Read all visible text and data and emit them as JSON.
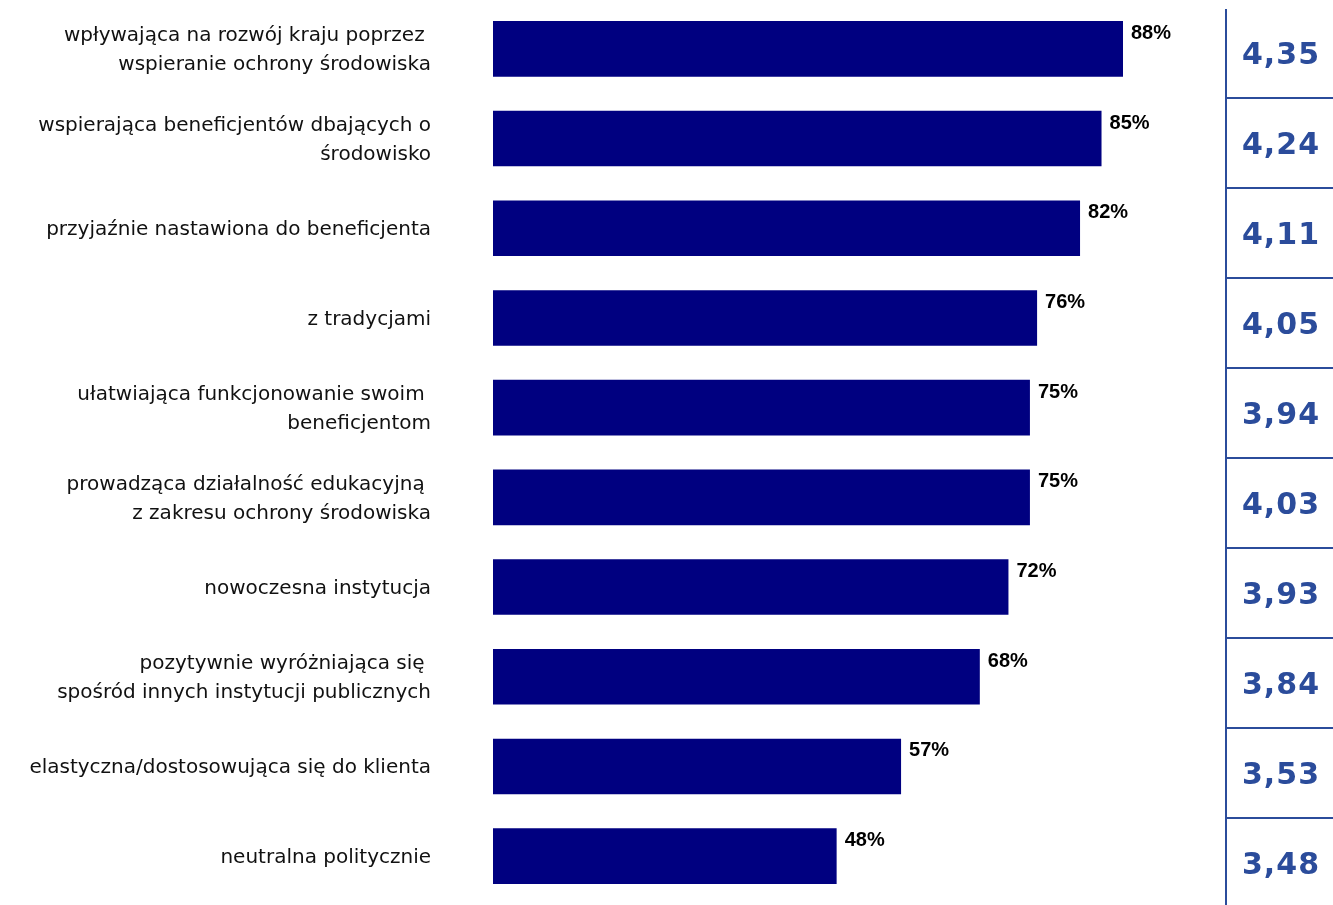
{
  "chart_data": {
    "type": "bar",
    "orientation": "horizontal",
    "categories": [
      "wpływająca na rozwój kraju poprzez wspieranie ochrony środowiska",
      "wspierająca beneficjentów dbających o środowisko",
      "przyjaźnie nastawiona do beneficjenta",
      "z tradycjami",
      "ułatwiająca funkcjonowanie swoim beneficjentom",
      "prowadząca działalność edukacyjną z zakresu ochrony środowiska",
      "nowoczesna instytucja",
      "pozytywnie wyróżniająca się spośród innych instytucji publicznych",
      "elastyczna/dostosowująca się do klienta",
      "neutralna politycznie"
    ],
    "values": [
      88,
      85,
      82,
      76,
      75,
      75,
      72,
      68,
      57,
      48
    ],
    "value_labels": [
      "88%",
      "85%",
      "82%",
      "76%",
      "75%",
      "75%",
      "72%",
      "68%",
      "57%",
      "48%"
    ],
    "color": "#000080",
    "annotations": [
      "4,35",
      "4,24",
      "4,11",
      "4,05",
      "3,94",
      "4,03",
      "3,93",
      "3,84",
      "3,53",
      "3,48"
    ]
  }
}
